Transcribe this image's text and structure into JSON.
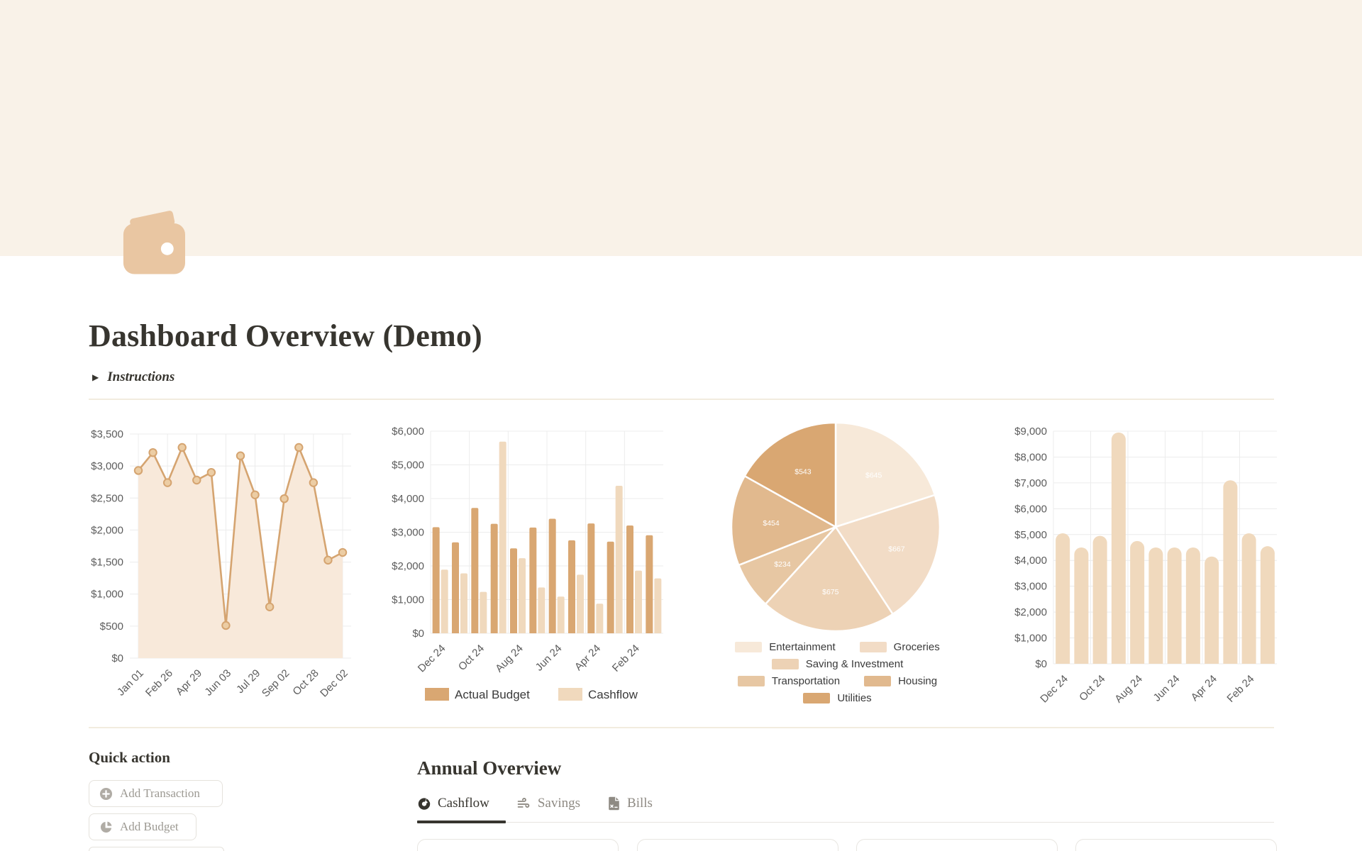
{
  "page": {
    "title": "Dashboard Overview (Demo)",
    "toggle_arrow": "▶",
    "toggle_label": "Instructions"
  },
  "colors": {
    "banner": "#f9f2e8",
    "wallet_icon": "#e9c6a2",
    "line": "#d5a470",
    "line_area_fill": "#f8e9da",
    "marker_fill": "#eccda4",
    "bar_dark": "#d9a772",
    "bar_light": "#f0d9bd",
    "pie_slices": [
      "#f7e9d9",
      "#f2dcc6",
      "#edd2b5",
      "#e7c7a3",
      "#e1b98e",
      "#d9a772"
    ],
    "axis_text": "#5c5c5c",
    "grid": "#ececec",
    "text_dark": "#37352f",
    "text_gray": "#9d9a93",
    "icon_gray": "#b0aca5",
    "border": "#e5e2dc"
  },
  "chart_data": [
    {
      "id": "cashflow_trend",
      "type": "area",
      "ylim": [
        0,
        3500
      ],
      "ystep": 500,
      "tick_prefix": "$",
      "grid": true,
      "x_tick_labels": [
        "Jan 01",
        "Feb 26",
        "Apr 29",
        "Jun 03",
        "Jul 29",
        "Sep 02",
        "Oct 28",
        "Dec 02"
      ],
      "label_indices": [
        0,
        2,
        4,
        6,
        8,
        10,
        12,
        14
      ],
      "values": [
        2930,
        3210,
        2740,
        3290,
        2780,
        2900,
        510,
        3160,
        2550,
        800,
        2490,
        3290,
        2740,
        1530,
        1650
      ]
    },
    {
      "id": "budget_vs_cashflow",
      "type": "bar",
      "ylim": [
        0,
        6000
      ],
      "ystep": 1000,
      "tick_prefix": "$",
      "grid": true,
      "legend_position": "bottom",
      "x_tick_labels": [
        "Dec 24",
        "Oct 24",
        "Aug 24",
        "Jun 24",
        "Apr 24",
        "Feb 24"
      ],
      "label_indices": [
        0,
        2,
        4,
        6,
        8,
        10
      ],
      "series": [
        {
          "name": "Actual Budget",
          "values": [
            3150,
            2700,
            3720,
            3250,
            2520,
            3140,
            3400,
            2760,
            3260,
            2720,
            3200,
            2910
          ]
        },
        {
          "name": "Cashflow",
          "values": [
            1890,
            1780,
            1230,
            5690,
            2230,
            1360,
            1090,
            1740,
            880,
            4380,
            1860,
            1630
          ]
        }
      ]
    },
    {
      "id": "spending_breakdown",
      "type": "pie",
      "value_prefix": "$",
      "slices": [
        {
          "label": "Entertainment",
          "value": 645
        },
        {
          "label": "Groceries",
          "value": 667
        },
        {
          "label": "Saving & Investment",
          "value": 675
        },
        {
          "label": "Transportation",
          "value": 234
        },
        {
          "label": "Housing",
          "value": 454
        },
        {
          "label": "Utilities",
          "value": 543
        }
      ],
      "legend_rows": [
        [
          0,
          1
        ],
        [
          2
        ],
        [
          3,
          4
        ],
        [
          5
        ]
      ],
      "legend_position": "bottom"
    },
    {
      "id": "monthly_income",
      "type": "bar",
      "ylim": [
        0,
        9000
      ],
      "ystep": 1000,
      "tick_prefix": "$",
      "grid": true,
      "x_tick_labels": [
        "Dec 24",
        "Oct 24",
        "Aug 24",
        "Jun 24",
        "Apr 24",
        "Feb 24"
      ],
      "label_indices": [
        0,
        2,
        4,
        6,
        8,
        10
      ],
      "values": [
        5050,
        4500,
        4950,
        8950,
        4750,
        4500,
        4500,
        4500,
        4150,
        7100,
        5050,
        4550
      ]
    }
  ],
  "quick_action": {
    "heading": "Quick action",
    "buttons": [
      {
        "label": "Add Transaction",
        "icon": "plus-circle-icon"
      },
      {
        "label": "Add Budget",
        "icon": "pie-chart-icon"
      }
    ]
  },
  "annual_overview": {
    "heading": "Annual Overview",
    "tabs": [
      {
        "label": "Cashflow",
        "icon": "donut-chart-icon",
        "active": true
      },
      {
        "label": "Savings",
        "icon": "cash-flow-icon",
        "active": false
      },
      {
        "label": "Bills",
        "icon": "receipt-icon",
        "active": false
      }
    ],
    "cards_visible": 4
  }
}
